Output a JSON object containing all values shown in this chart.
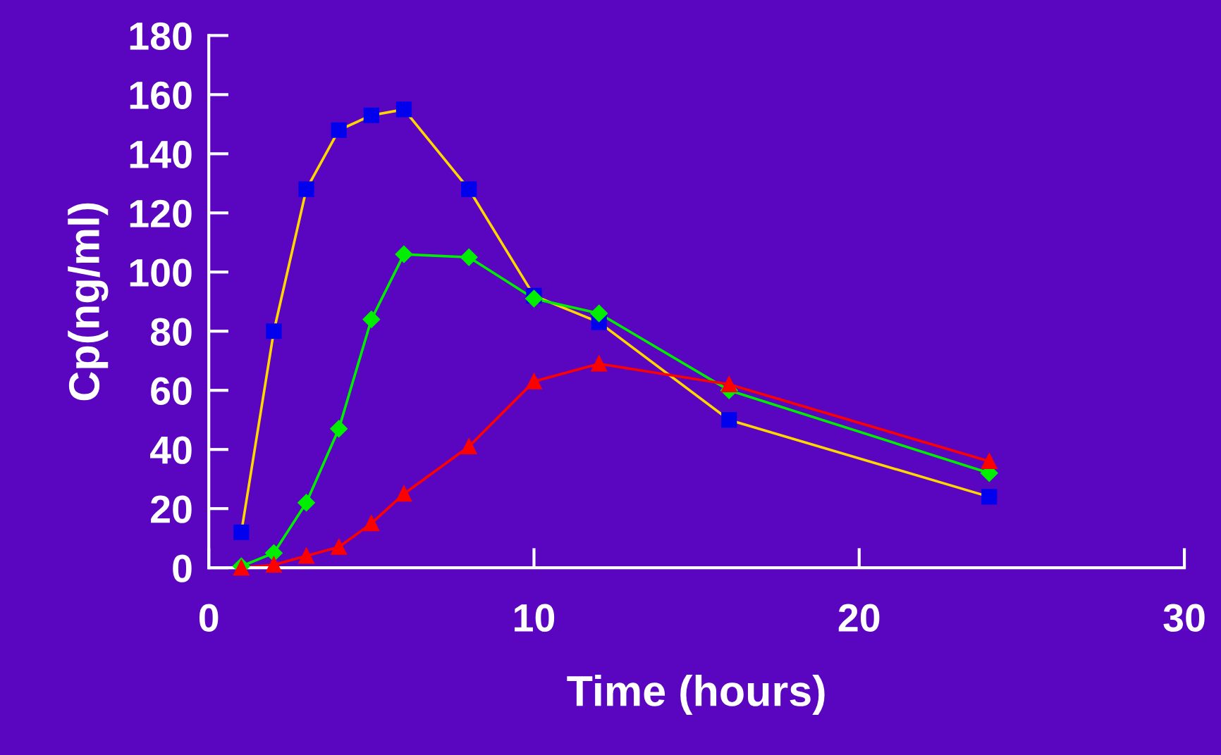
{
  "chart_data": {
    "type": "line",
    "xlabel": "Time (hours)",
    "ylabel": "Cp(ng/ml)",
    "xlim": [
      0,
      30
    ],
    "xticks": [
      0,
      10,
      20,
      30
    ],
    "ylim": [
      0,
      180
    ],
    "yticks": [
      0,
      20,
      40,
      60,
      80,
      100,
      120,
      140,
      160,
      180
    ],
    "x": [
      1,
      2,
      3,
      4,
      5,
      6,
      8,
      10,
      12,
      16,
      24
    ],
    "series": [
      {
        "color": "#ffd700",
        "colors": [
          "#0000ee",
          "#0000ee",
          "#0000ee",
          "#0000ee",
          "#0000ee",
          "#0000ee",
          "#0000ee",
          "#0000ee",
          "#0000ee",
          "#0000ee",
          "#0000ee"
        ],
        "marker": "square",
        "values": [
          12,
          80,
          128,
          148,
          153,
          155,
          128,
          92,
          83,
          50,
          24
        ]
      },
      {
        "color": "#00ee00",
        "marker": "diamond",
        "values": [
          0.5,
          5,
          22,
          47,
          84,
          106,
          105,
          91,
          86,
          60,
          32
        ]
      },
      {
        "color": "#ff0000",
        "marker": "triangle",
        "values": [
          0,
          1,
          4,
          7,
          15,
          25,
          41,
          63,
          69,
          62,
          36
        ]
      }
    ]
  }
}
